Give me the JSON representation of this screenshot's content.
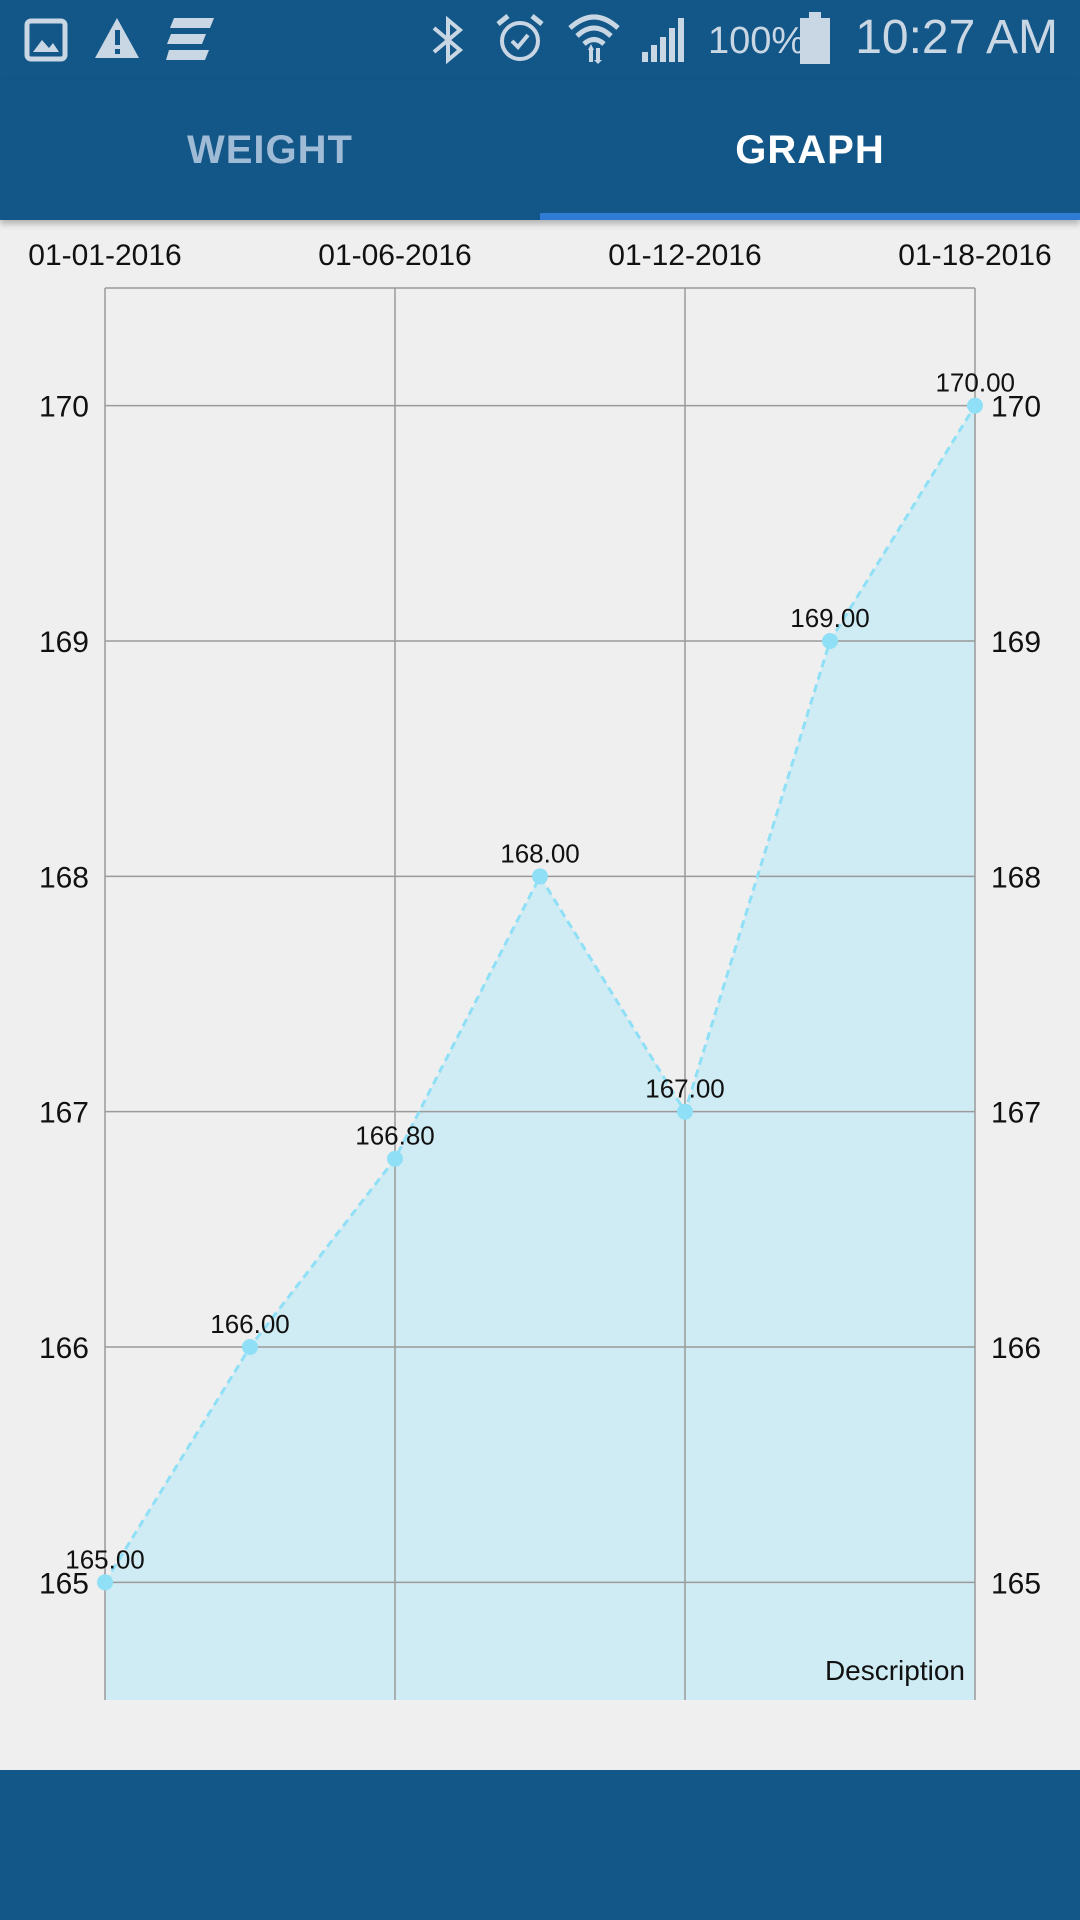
{
  "status_bar": {
    "icons": [
      "gallery-icon",
      "warning-icon",
      "app-e-icon",
      "bluetooth-icon",
      "alarm-icon",
      "wifi-icon",
      "signal-icon",
      "battery-icon"
    ],
    "battery_text": "100%",
    "time": "10:27 AM"
  },
  "tabs": [
    {
      "label": "WEIGHT",
      "selected": false
    },
    {
      "label": "GRAPH",
      "selected": true
    }
  ],
  "colors": {
    "primary": "#135788",
    "tab_indicator": "#2f7bd6",
    "line": "#8fe0f6",
    "fill": "#cfebf4",
    "grid": "#9a9a9a"
  },
  "chart_data": {
    "type": "area",
    "x": [
      "01-01-2016",
      "01-03-2016",
      "01-06-2016",
      "01-09-2016",
      "01-12-2016",
      "01-15-2016",
      "01-18-2016"
    ],
    "x_tick_labels": [
      "01-01-2016",
      "01-06-2016",
      "01-12-2016",
      "01-18-2016"
    ],
    "series": [
      {
        "values": [
          165.0,
          166.0,
          166.8,
          168.0,
          167.0,
          169.0,
          170.0
        ],
        "data_labels": [
          "165.00",
          "166.00",
          "166.80",
          "168.00",
          "167.00",
          "169.00",
          "170.00"
        ]
      }
    ],
    "y_ticks": [
      165,
      166,
      167,
      168,
      169,
      170
    ],
    "ylim": [
      164.5,
      170.5
    ],
    "grid": true,
    "x_axis_position": "top",
    "y_axis_position": "both",
    "line_style": "dashed",
    "description": "Description"
  }
}
